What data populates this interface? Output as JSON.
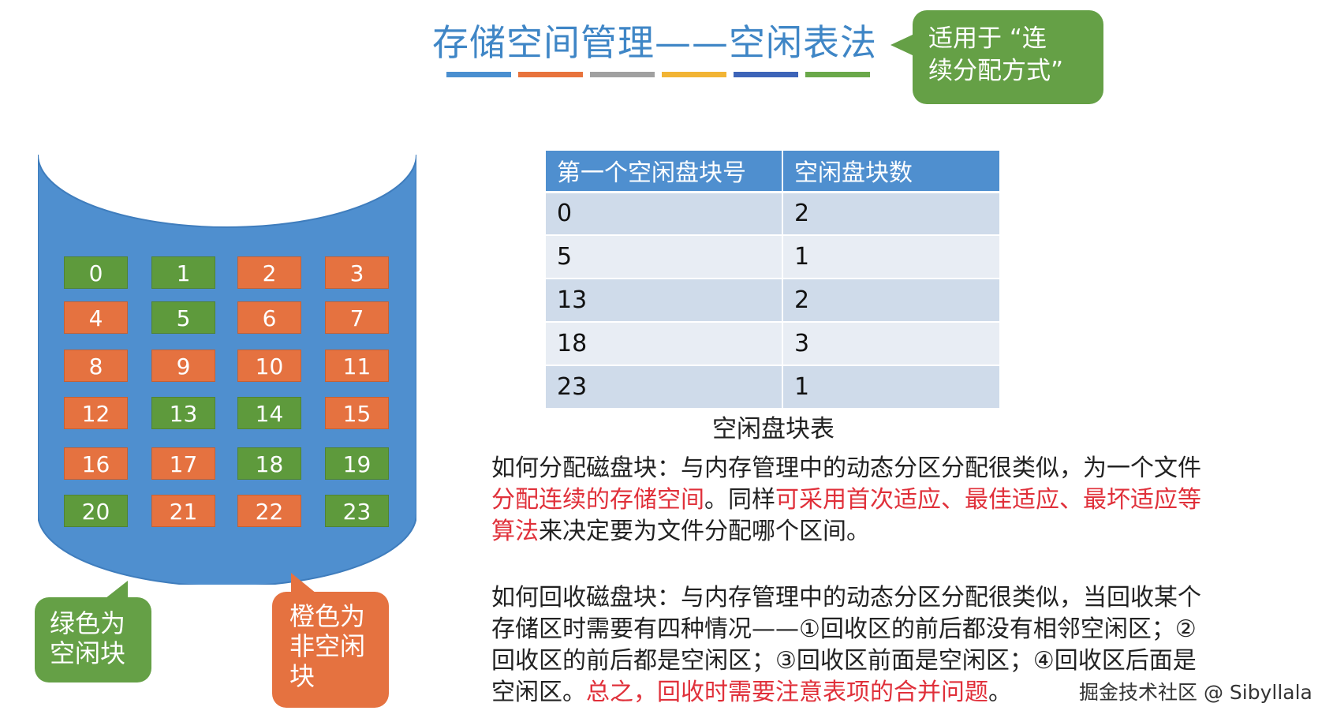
{
  "title": "存储空间管理——空闲表法",
  "title_bar_colors": [
    "#4a8fd0",
    "#e8733c",
    "#a0a0a0",
    "#f2b434",
    "#3d64b8",
    "#6aa84a"
  ],
  "callout_top": {
    "lines": [
      "适用于 “连",
      "续分配方式”"
    ],
    "color": "#65a046"
  },
  "disk": {
    "color": "#4f8fcf",
    "free_color": "#5e9a3c",
    "used_color": "#e57240",
    "blocks": [
      {
        "n": "0",
        "free": true
      },
      {
        "n": "1",
        "free": true
      },
      {
        "n": "2",
        "free": false
      },
      {
        "n": "3",
        "free": false
      },
      {
        "n": "4",
        "free": false
      },
      {
        "n": "5",
        "free": true
      },
      {
        "n": "6",
        "free": false
      },
      {
        "n": "7",
        "free": false
      },
      {
        "n": "8",
        "free": false
      },
      {
        "n": "9",
        "free": false
      },
      {
        "n": "10",
        "free": false
      },
      {
        "n": "11",
        "free": false
      },
      {
        "n": "12",
        "free": false
      },
      {
        "n": "13",
        "free": true
      },
      {
        "n": "14",
        "free": true
      },
      {
        "n": "15",
        "free": false
      },
      {
        "n": "16",
        "free": false
      },
      {
        "n": "17",
        "free": false
      },
      {
        "n": "18",
        "free": true
      },
      {
        "n": "19",
        "free": true
      },
      {
        "n": "20",
        "free": true
      },
      {
        "n": "21",
        "free": false
      },
      {
        "n": "22",
        "free": false
      },
      {
        "n": "23",
        "free": true
      }
    ]
  },
  "legend": {
    "green": [
      "绿色为",
      "空闲块"
    ],
    "orange": [
      "橙色为",
      "非空闲",
      "块"
    ]
  },
  "table": {
    "headers": [
      "第一个空闲盘块号",
      "空闲盘块数"
    ],
    "rows": [
      [
        "0",
        "2"
      ],
      [
        "5",
        "1"
      ],
      [
        "13",
        "2"
      ],
      [
        "18",
        "3"
      ],
      [
        "23",
        "1"
      ]
    ],
    "caption": "空闲盘块表"
  },
  "para1": [
    [
      {
        "t": "如何分配磁盘块：与内存管理中的动态分区分配很类似，为一个文件",
        "red": false
      }
    ],
    [
      {
        "t": "分配连续的存储空间",
        "red": true
      },
      {
        "t": "。同样",
        "red": false
      },
      {
        "t": "可采用首次适应、最佳适应、最坏适应等",
        "red": true
      }
    ],
    [
      {
        "t": "算法",
        "red": true
      },
      {
        "t": "来决定要为文件分配哪个区间。",
        "red": false
      }
    ]
  ],
  "para2": [
    [
      {
        "t": "如何回收磁盘块：与内存管理中的动态分区分配很类似，当回收某个",
        "red": false
      }
    ],
    [
      {
        "t": "存储区时需要有四种情况——①回收区的前后都没有相邻空闲区；②",
        "red": false
      }
    ],
    [
      {
        "t": "回收区的前后都是空闲区；③回收区前面是空闲区；④回收区后面是",
        "red": false
      }
    ],
    [
      {
        "t": "空闲区。",
        "red": false
      },
      {
        "t": "总之，回收时需要注意表项的合并问题",
        "red": true
      },
      {
        "t": "。",
        "red": false
      }
    ]
  ],
  "watermark": "掘金技术社区 @ Sibyllala"
}
